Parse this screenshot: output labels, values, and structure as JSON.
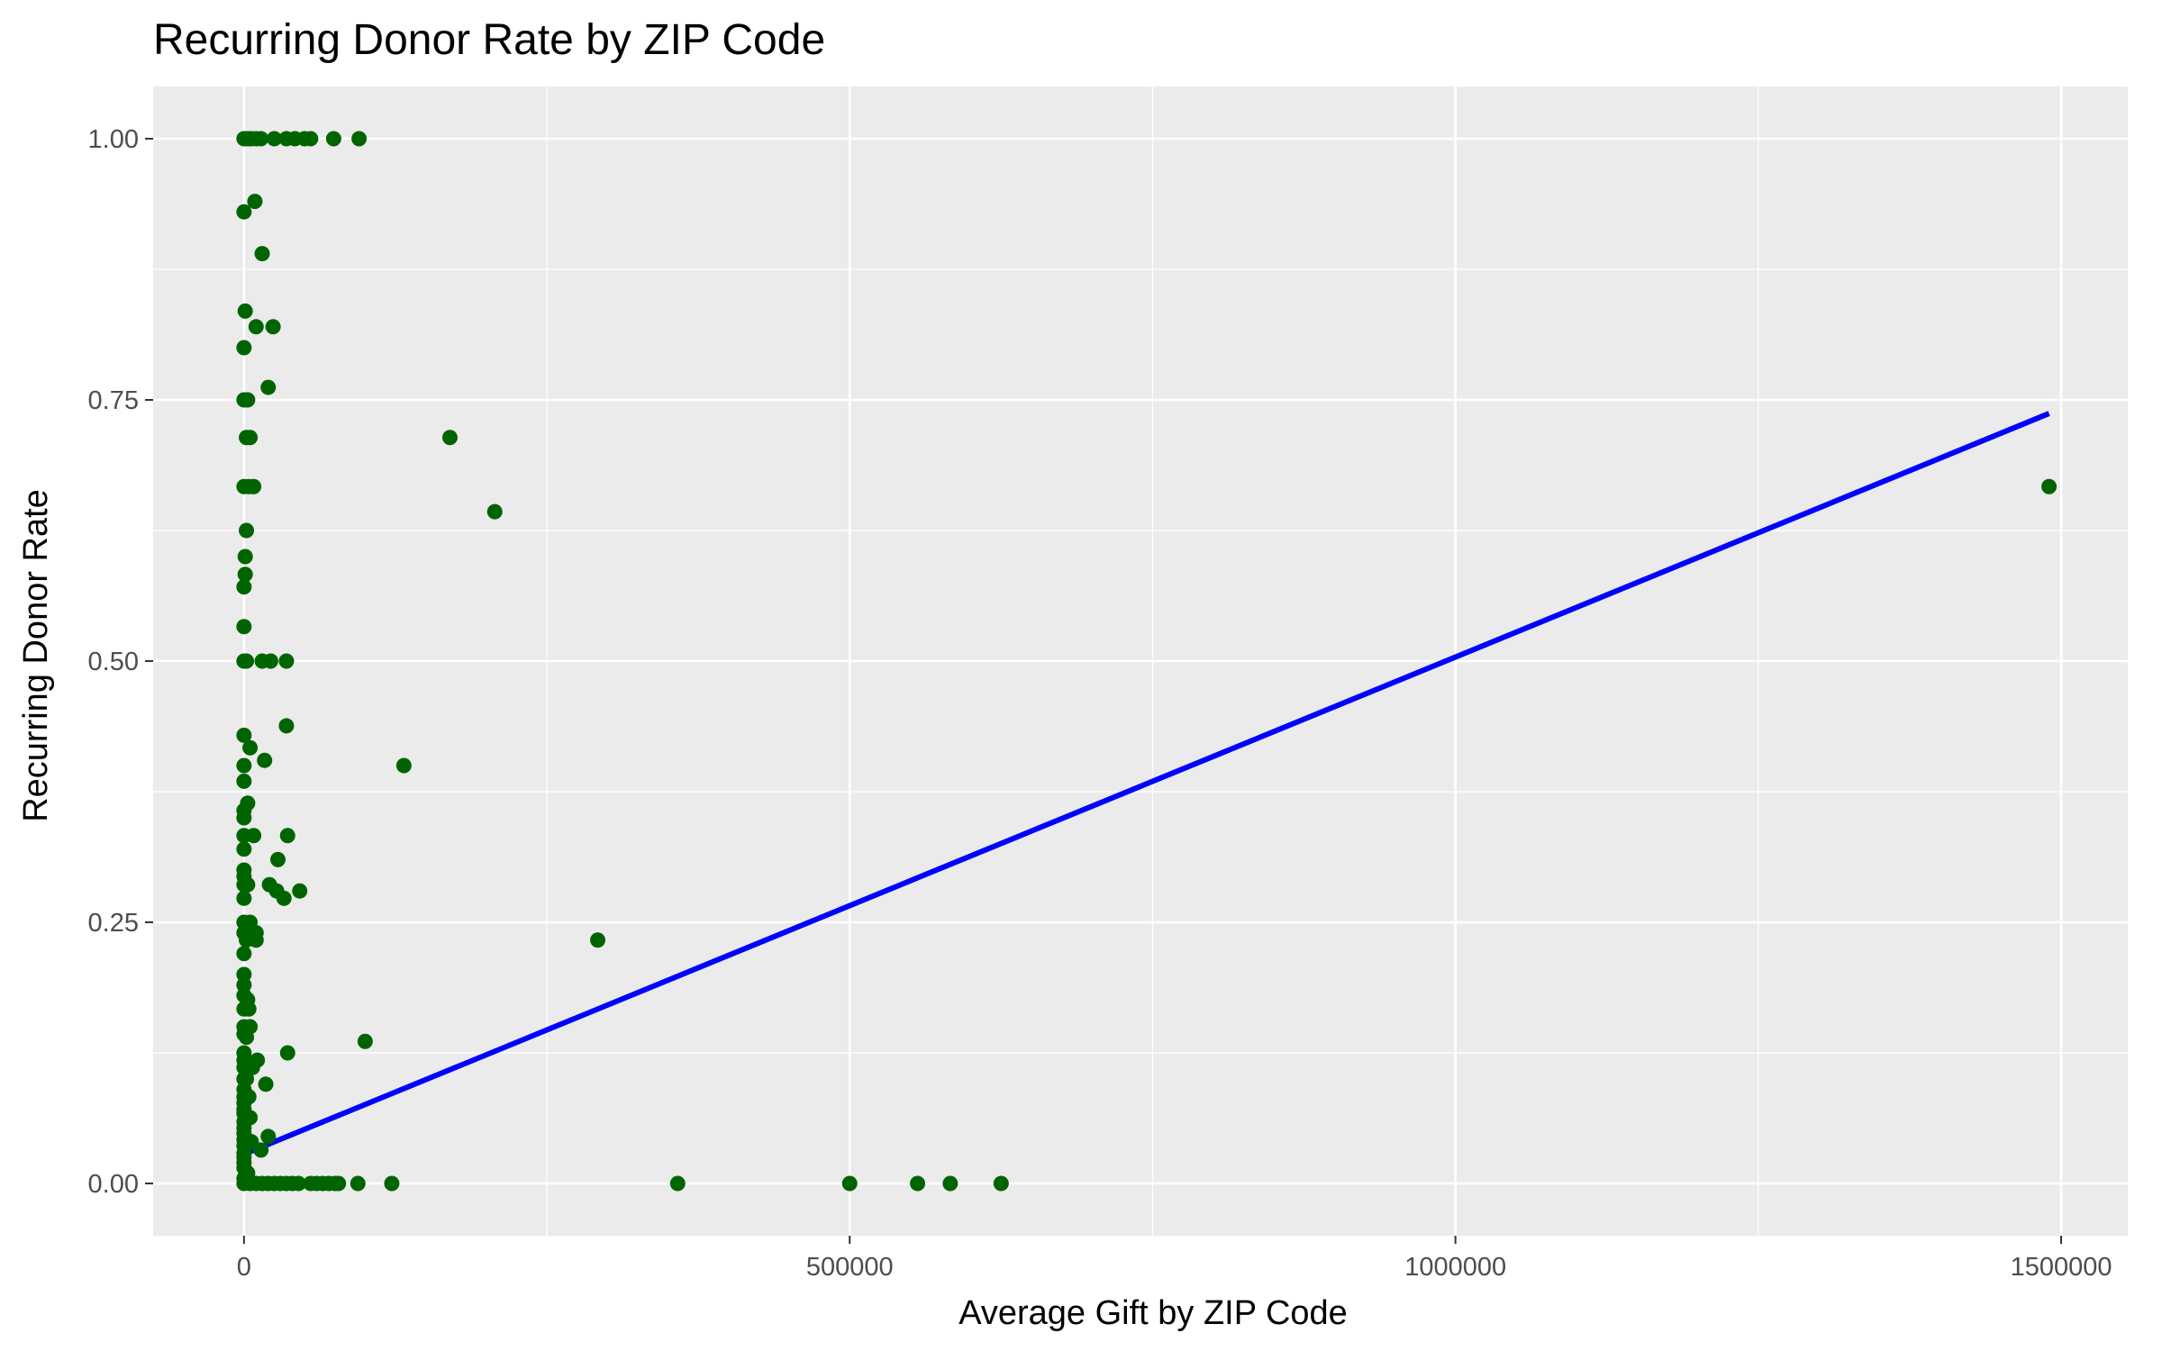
{
  "chart_data": {
    "type": "scatter",
    "title": "Recurring Donor Rate by ZIP Code",
    "xlabel": "Average Gift by ZIP Code",
    "ylabel": "Recurring Donor Rate",
    "xlim": [
      -75000,
      1555000
    ],
    "ylim": [
      -0.05,
      1.05
    ],
    "x_ticks": [
      0,
      500000,
      1000000,
      1500000
    ],
    "x_tick_labels": [
      "0",
      "500000",
      "1000000",
      "1500000"
    ],
    "y_ticks": [
      0,
      0.25,
      0.5,
      0.75,
      1.0
    ],
    "y_tick_labels": [
      "0.00",
      "0.25",
      "0.50",
      "0.75",
      "1.00"
    ],
    "grid": true,
    "point_color": "#006400",
    "fit_color": "#0000ff",
    "panel_color": "#ebebeb",
    "points": [
      {
        "x": 0,
        "y": 1.0
      },
      {
        "x": 3000,
        "y": 1.0
      },
      {
        "x": 6000,
        "y": 1.0
      },
      {
        "x": 10000,
        "y": 1.0
      },
      {
        "x": 14000,
        "y": 1.0
      },
      {
        "x": 25000,
        "y": 1.0
      },
      {
        "x": 35000,
        "y": 1.0
      },
      {
        "x": 42000,
        "y": 1.0
      },
      {
        "x": 50000,
        "y": 1.0
      },
      {
        "x": 55000,
        "y": 1.0
      },
      {
        "x": 74000,
        "y": 1.0
      },
      {
        "x": 95000,
        "y": 1.0
      },
      {
        "x": 0,
        "y": 0.93
      },
      {
        "x": 9000,
        "y": 0.94
      },
      {
        "x": 15000,
        "y": 0.89
      },
      {
        "x": 1000,
        "y": 0.835
      },
      {
        "x": 10000,
        "y": 0.82
      },
      {
        "x": 24000,
        "y": 0.82
      },
      {
        "x": 0,
        "y": 0.8
      },
      {
        "x": 20000,
        "y": 0.762
      },
      {
        "x": 0,
        "y": 0.75
      },
      {
        "x": 3000,
        "y": 0.75
      },
      {
        "x": 2000,
        "y": 0.714
      },
      {
        "x": 5000,
        "y": 0.714
      },
      {
        "x": 170000,
        "y": 0.714
      },
      {
        "x": 0,
        "y": 0.667
      },
      {
        "x": 4000,
        "y": 0.667
      },
      {
        "x": 8000,
        "y": 0.667
      },
      {
        "x": 1490000,
        "y": 0.667
      },
      {
        "x": 207000,
        "y": 0.643
      },
      {
        "x": 2000,
        "y": 0.625
      },
      {
        "x": 1000,
        "y": 0.6
      },
      {
        "x": 1000,
        "y": 0.583
      },
      {
        "x": 0,
        "y": 0.571
      },
      {
        "x": 0,
        "y": 0.533
      },
      {
        "x": 0,
        "y": 0.5
      },
      {
        "x": 2000,
        "y": 0.5
      },
      {
        "x": 15000,
        "y": 0.5
      },
      {
        "x": 22000,
        "y": 0.5
      },
      {
        "x": 35000,
        "y": 0.5
      },
      {
        "x": 35000,
        "y": 0.438
      },
      {
        "x": 0,
        "y": 0.429
      },
      {
        "x": 5000,
        "y": 0.417
      },
      {
        "x": 17000,
        "y": 0.405
      },
      {
        "x": 0,
        "y": 0.4
      },
      {
        "x": 132000,
        "y": 0.4
      },
      {
        "x": 0,
        "y": 0.385
      },
      {
        "x": 3000,
        "y": 0.364
      },
      {
        "x": 0,
        "y": 0.357
      },
      {
        "x": 0,
        "y": 0.35
      },
      {
        "x": 0,
        "y": 0.333
      },
      {
        "x": 8000,
        "y": 0.333
      },
      {
        "x": 36000,
        "y": 0.333
      },
      {
        "x": 0,
        "y": 0.32
      },
      {
        "x": 28000,
        "y": 0.31
      },
      {
        "x": 0,
        "y": 0.3
      },
      {
        "x": 0,
        "y": 0.294
      },
      {
        "x": 21000,
        "y": 0.286
      },
      {
        "x": 0,
        "y": 0.286
      },
      {
        "x": 3000,
        "y": 0.286
      },
      {
        "x": 27000,
        "y": 0.28
      },
      {
        "x": 46000,
        "y": 0.28
      },
      {
        "x": 0,
        "y": 0.273
      },
      {
        "x": 33000,
        "y": 0.273
      },
      {
        "x": 0,
        "y": 0.25
      },
      {
        "x": 5000,
        "y": 0.25
      },
      {
        "x": 0,
        "y": 0.24
      },
      {
        "x": 10000,
        "y": 0.24
      },
      {
        "x": 2000,
        "y": 0.233
      },
      {
        "x": 10000,
        "y": 0.233
      },
      {
        "x": 292000,
        "y": 0.233
      },
      {
        "x": 0,
        "y": 0.22
      },
      {
        "x": 0,
        "y": 0.2
      },
      {
        "x": 0,
        "y": 0.19
      },
      {
        "x": 0,
        "y": 0.18
      },
      {
        "x": 3000,
        "y": 0.176
      },
      {
        "x": 0,
        "y": 0.167
      },
      {
        "x": 4000,
        "y": 0.167
      },
      {
        "x": 0,
        "y": 0.15
      },
      {
        "x": 5000,
        "y": 0.15
      },
      {
        "x": 0,
        "y": 0.143
      },
      {
        "x": 2000,
        "y": 0.14
      },
      {
        "x": 100000,
        "y": 0.136
      },
      {
        "x": 0,
        "y": 0.125
      },
      {
        "x": 36000,
        "y": 0.125
      },
      {
        "x": 0,
        "y": 0.118
      },
      {
        "x": 11000,
        "y": 0.118
      },
      {
        "x": 0,
        "y": 0.111
      },
      {
        "x": 7000,
        "y": 0.111
      },
      {
        "x": 0,
        "y": 0.1
      },
      {
        "x": 2000,
        "y": 0.1
      },
      {
        "x": 18000,
        "y": 0.095
      },
      {
        "x": 0,
        "y": 0.09
      },
      {
        "x": 0,
        "y": 0.083
      },
      {
        "x": 4000,
        "y": 0.083
      },
      {
        "x": 0,
        "y": 0.077
      },
      {
        "x": 0,
        "y": 0.071
      },
      {
        "x": 0,
        "y": 0.067
      },
      {
        "x": 5000,
        "y": 0.063
      },
      {
        "x": 0,
        "y": 0.059
      },
      {
        "x": 0,
        "y": 0.053
      },
      {
        "x": 0,
        "y": 0.048
      },
      {
        "x": 20000,
        "y": 0.045
      },
      {
        "x": 0,
        "y": 0.042
      },
      {
        "x": 6000,
        "y": 0.04
      },
      {
        "x": 0,
        "y": 0.036
      },
      {
        "x": 14000,
        "y": 0.032
      },
      {
        "x": 0,
        "y": 0.029
      },
      {
        "x": 0,
        "y": 0.025
      },
      {
        "x": 0,
        "y": 0.02
      },
      {
        "x": 0,
        "y": 0.015
      },
      {
        "x": 3000,
        "y": 0.01
      },
      {
        "x": 0,
        "y": 0.005
      },
      {
        "x": 0,
        "y": 0
      },
      {
        "x": 5000,
        "y": 0
      },
      {
        "x": 10000,
        "y": 0
      },
      {
        "x": 15000,
        "y": 0
      },
      {
        "x": 20000,
        "y": 0
      },
      {
        "x": 25000,
        "y": 0
      },
      {
        "x": 30000,
        "y": 0
      },
      {
        "x": 35000,
        "y": 0
      },
      {
        "x": 40000,
        "y": 0
      },
      {
        "x": 45000,
        "y": 0
      },
      {
        "x": 55000,
        "y": 0
      },
      {
        "x": 60000,
        "y": 0
      },
      {
        "x": 65000,
        "y": 0
      },
      {
        "x": 70000,
        "y": 0
      },
      {
        "x": 75000,
        "y": 0
      },
      {
        "x": 78000,
        "y": 0
      },
      {
        "x": 94000,
        "y": 0
      },
      {
        "x": 122000,
        "y": 0
      },
      {
        "x": 358000,
        "y": 0
      },
      {
        "x": 500000,
        "y": 0
      },
      {
        "x": 556000,
        "y": 0
      },
      {
        "x": 583000,
        "y": 0
      },
      {
        "x": 625000,
        "y": 0
      }
    ],
    "fit_line": {
      "x": [
        0,
        1490000
      ],
      "y": [
        0.028,
        0.737
      ]
    }
  }
}
